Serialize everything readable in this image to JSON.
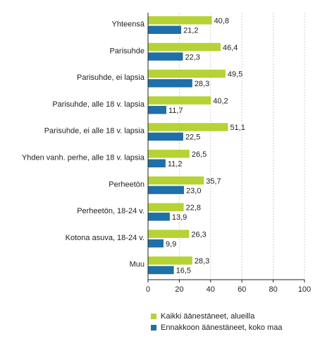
{
  "chart_data": {
    "type": "bar",
    "orientation": "horizontal",
    "categories": [
      "Yhteensä",
      "Parisuhde",
      "Parisuhde, ei lapsia",
      "Parisuhde, alle 18 v. lapsia",
      "Parisuhde, ei alle 18 v. lapsia",
      "Yhden vanh. perhe, alle 18 v. lapsia",
      "Perheetön",
      "Perheetön, 18-24 v.",
      "Kotona asuva, 18-24 v.",
      "Muu"
    ],
    "series": [
      {
        "name": "Kaikki äänestäneet, alueilla",
        "color": "#b5d334",
        "values": [
          40.8,
          46.4,
          49.5,
          40.2,
          51.1,
          26.5,
          35.7,
          22.8,
          26.3,
          28.3
        ],
        "labels": [
          "40,8",
          "46,4",
          "49,5",
          "40,2",
          "51,1",
          "26,5",
          "35,7",
          "22,8",
          "26,3",
          "28,3"
        ]
      },
      {
        "name": "Ennakkoon äänestäneet, koko maa",
        "color": "#1f6fa8",
        "values": [
          21.2,
          22.3,
          28.3,
          11.7,
          22.5,
          11.2,
          23.0,
          13.9,
          9.9,
          16.5
        ],
        "labels": [
          "21,2",
          "22,3",
          "28,3",
          "11,7",
          "22,5",
          "11,2",
          "23,0",
          "13,9",
          "9,9",
          "16,5"
        ]
      }
    ],
    "x_ticks": [
      0,
      20,
      40,
      60,
      80,
      100
    ],
    "xlim": [
      0,
      100
    ],
    "grid": true,
    "legend_position": "bottom",
    "title": "",
    "xlabel": "",
    "ylabel": ""
  }
}
